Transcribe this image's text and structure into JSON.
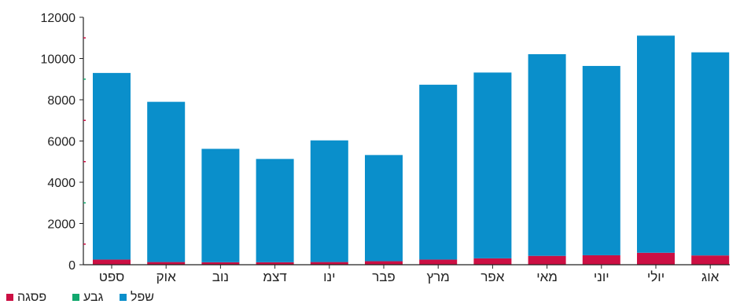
{
  "chart_data": {
    "type": "bar",
    "stacked": true,
    "categories": [
      "ספט",
      "אוק",
      "נוב",
      "דצמ",
      "ינו",
      "פבר",
      "מרץ",
      "אפר",
      "מאי",
      "יוני",
      "יולי",
      "אוג"
    ],
    "series": [
      {
        "name": "שפל",
        "color": "#0a8fcb",
        "values": [
          9050,
          7770,
          5500,
          5010,
          5900,
          5150,
          8480,
          9010,
          9780,
          9180,
          10530,
          9850
        ]
      },
      {
        "name": "גבע",
        "color": "#12a86e",
        "values": [
          0,
          0,
          0,
          0,
          0,
          0,
          0,
          0,
          0,
          0,
          0,
          0
        ]
      },
      {
        "name": "פסגה",
        "color": "#cc0f43",
        "values": [
          250,
          130,
          120,
          120,
          130,
          170,
          250,
          310,
          430,
          460,
          580,
          450
        ]
      }
    ],
    "ylim": [
      0,
      12000
    ],
    "yticks": [
      0,
      2000,
      4000,
      6000,
      8000,
      10000,
      12000
    ],
    "grid": false,
    "legend_position": "bottom-left"
  }
}
